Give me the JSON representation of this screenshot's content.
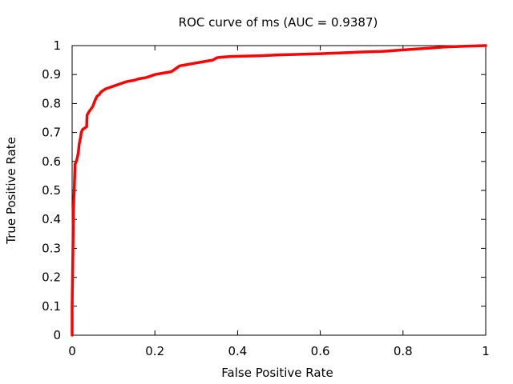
{
  "chart_data": {
    "type": "line",
    "title": "ROC curve of ms (AUC = 0.9387)",
    "xlabel": "False Positive Rate",
    "ylabel": "True Positive Rate",
    "xlim": [
      0,
      1
    ],
    "ylim": [
      0,
      1
    ],
    "xticks": [
      0,
      0.2,
      0.4,
      0.6,
      0.8,
      1
    ],
    "xtick_labels": [
      "0",
      "0.2",
      "0.4",
      "0.6",
      "0.8",
      "1"
    ],
    "yticks": [
      0,
      0.1,
      0.2,
      0.3,
      0.4,
      0.5,
      0.6,
      0.7,
      0.8,
      0.9,
      1
    ],
    "ytick_labels": [
      "0",
      "0.1",
      "0.2",
      "0.3",
      "0.4",
      "0.5",
      "0.6",
      "0.7",
      "0.8",
      "0.9",
      "1"
    ],
    "grid": false,
    "legend": "none",
    "series": [
      {
        "color": "#ff0000",
        "x": [
          0.0,
          0.0,
          0.002,
          0.003,
          0.004,
          0.005,
          0.007,
          0.01,
          0.012,
          0.015,
          0.017,
          0.02,
          0.022,
          0.025,
          0.03,
          0.035,
          0.036,
          0.04,
          0.045,
          0.05,
          0.055,
          0.06,
          0.065,
          0.07,
          0.075,
          0.08,
          0.09,
          0.1,
          0.11,
          0.12,
          0.13,
          0.14,
          0.15,
          0.16,
          0.18,
          0.2,
          0.22,
          0.24,
          0.25,
          0.26,
          0.28,
          0.3,
          0.32,
          0.34,
          0.35,
          0.36,
          0.38,
          0.4,
          0.45,
          0.5,
          0.55,
          0.6,
          0.65,
          0.7,
          0.75,
          0.8,
          0.85,
          0.9,
          0.95,
          1.0
        ],
        "y": [
          0.0,
          0.1,
          0.3,
          0.43,
          0.47,
          0.5,
          0.59,
          0.6,
          0.61,
          0.63,
          0.66,
          0.68,
          0.7,
          0.71,
          0.715,
          0.72,
          0.76,
          0.77,
          0.78,
          0.79,
          0.81,
          0.825,
          0.83,
          0.84,
          0.845,
          0.85,
          0.855,
          0.86,
          0.865,
          0.87,
          0.875,
          0.878,
          0.88,
          0.885,
          0.89,
          0.9,
          0.905,
          0.91,
          0.92,
          0.93,
          0.935,
          0.94,
          0.945,
          0.95,
          0.958,
          0.96,
          0.962,
          0.963,
          0.965,
          0.968,
          0.97,
          0.972,
          0.975,
          0.978,
          0.98,
          0.985,
          0.99,
          0.995,
          0.998,
          1.0
        ]
      }
    ]
  }
}
